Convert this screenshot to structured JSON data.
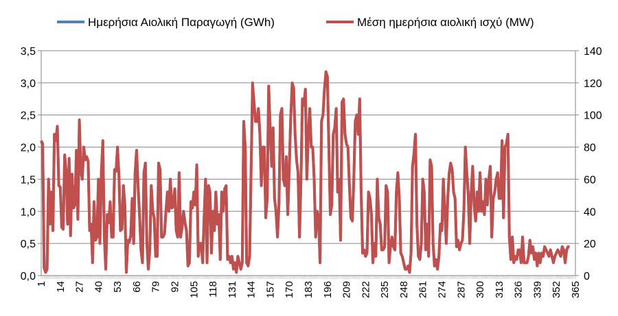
{
  "chart_data": {
    "type": "line",
    "title": "",
    "xlabel": "",
    "ylabel": "",
    "legend_position": "top",
    "grid": true,
    "x_tick_labels": [
      "1",
      "14",
      "27",
      "40",
      "53",
      "66",
      "79",
      "92",
      "105",
      "118",
      "131",
      "144",
      "157",
      "170",
      "183",
      "196",
      "209",
      "222",
      "235",
      "248",
      "261",
      "274",
      "287",
      "300",
      "313",
      "326",
      "339",
      "352",
      "365"
    ],
    "y_left": {
      "min": 0,
      "max": 3.5,
      "ticks": [
        "0,0",
        "0,5",
        "1,0",
        "1,5",
        "2,0",
        "2,5",
        "3,0",
        "3,5"
      ]
    },
    "y_right": {
      "min": 0,
      "max": 140,
      "ticks": [
        "0",
        "20",
        "40",
        "60",
        "80",
        "100",
        "120",
        "140"
      ]
    },
    "series": [
      {
        "name": "Ημερήσια Αιολική Παραγωγή (GWh)",
        "color": "#4f81bd",
        "axis": "left"
      },
      {
        "name": "Μέση ημερήσια αιολική ισχύ (MW)",
        "color": "#c0504d",
        "axis": "right"
      }
    ],
    "days": [
      1,
      365
    ],
    "anchors": {
      "day": [
        1,
        2,
        3,
        4,
        5,
        6,
        7,
        8,
        9,
        10,
        11,
        12,
        13,
        14,
        15,
        16,
        17,
        18,
        19,
        20,
        21,
        22,
        23,
        24,
        25,
        26,
        27,
        28,
        29,
        30,
        31,
        32,
        33,
        34,
        35,
        36,
        37,
        38,
        39,
        40,
        41,
        42,
        43,
        44,
        45,
        46,
        47,
        48,
        49,
        50,
        51,
        52,
        53,
        54,
        55,
        56,
        57,
        58,
        59,
        60,
        61,
        62,
        63,
        64,
        65,
        66,
        67,
        68,
        69,
        70,
        71,
        72,
        73,
        74,
        75,
        76,
        77,
        78,
        79,
        80,
        81,
        82,
        83,
        84,
        85,
        86,
        87,
        88,
        89,
        90,
        91,
        92,
        93,
        94,
        95,
        96,
        97,
        98,
        99,
        100,
        101,
        102,
        103,
        104,
        105,
        106,
        107,
        108,
        109,
        110,
        111,
        112,
        113,
        114,
        115,
        116,
        117,
        118,
        119,
        120,
        121,
        122,
        123,
        124,
        125,
        126,
        127,
        128,
        129,
        130,
        131,
        132,
        133,
        134,
        135,
        136,
        137,
        138,
        139,
        140,
        141,
        142,
        143,
        144,
        145,
        146,
        147,
        148,
        149,
        150,
        151,
        152,
        153,
        154,
        155,
        156,
        157,
        158,
        159,
        160,
        161,
        162,
        163,
        164,
        165,
        166,
        167,
        168,
        169,
        170,
        171,
        172,
        173,
        174,
        175,
        176,
        177,
        178,
        179,
        180,
        181,
        182,
        183,
        184,
        185,
        186,
        187,
        188,
        189,
        190,
        191,
        192,
        193,
        194,
        195,
        196,
        197,
        198,
        199,
        200,
        201,
        202,
        203,
        204,
        205,
        206,
        207,
        208,
        209,
        210,
        211,
        212,
        213,
        214,
        215,
        216,
        217,
        218,
        219,
        220,
        221,
        222,
        223,
        224,
        225,
        226,
        227,
        228,
        229,
        230,
        231,
        232,
        233,
        234,
        235,
        236,
        237,
        238,
        239,
        240,
        241,
        242,
        243,
        244,
        245,
        246,
        247,
        248,
        249,
        250,
        251,
        252,
        253,
        254,
        255,
        256,
        257,
        258,
        259,
        260,
        261,
        262,
        263,
        264,
        265,
        266,
        267,
        268,
        269,
        270,
        271,
        272,
        273,
        274,
        275,
        276,
        277,
        278,
        279,
        280,
        281,
        282,
        283,
        284,
        285,
        286,
        287,
        288,
        289,
        290,
        291,
        292,
        293,
        294,
        295,
        296,
        297,
        298,
        299,
        300,
        301,
        302,
        303,
        304,
        305,
        306,
        307,
        308,
        309,
        310,
        311,
        312,
        313,
        314,
        315,
        316,
        317,
        318,
        319,
        320,
        321,
        322,
        323,
        324,
        325,
        326,
        327,
        328,
        329,
        330,
        331,
        332,
        333,
        334,
        335,
        336,
        337,
        338,
        339,
        340,
        341,
        342,
        343,
        344,
        345,
        346,
        347,
        348,
        349,
        350,
        351,
        352,
        353,
        354,
        355,
        356,
        357,
        358,
        359,
        360,
        361,
        362,
        363,
        364,
        365
      ],
      "gwh": [
        2.08,
        2.05,
        0.12,
        0.05,
        0.1,
        1.5,
        0.8,
        1.3,
        0.7,
        2.2,
        2.1,
        2.32,
        1.4,
        1.38,
        0.75,
        0.72,
        1.88,
        1.6,
        0.8,
        1.82,
        0.62,
        1.58,
        1.05,
        1.1,
        1.95,
        0.88,
        2.4,
        1.62,
        1.5,
        2.0,
        1.8,
        1.85,
        1.78,
        0.7,
        0.8,
        0.2,
        1.15,
        0.55,
        0.6,
        1.5,
        0.5,
        1.6,
        2.1,
        0.6,
        0.1,
        0.95,
        0.82,
        1.15,
        0.6,
        0.6,
        1.65,
        1.62,
        2.0,
        1.55,
        0.7,
        0.72,
        1.4,
        1.1,
        0.05,
        0.55,
        0.52,
        0.62,
        1.2,
        0.5,
        1.6,
        1.95,
        1.4,
        0.95,
        0.4,
        0.2,
        1.6,
        1.75,
        0.5,
        0.1,
        0.4,
        1.4,
        1.0,
        0.9,
        0.3,
        0.3,
        1.75,
        1.65,
        0.6,
        0.6,
        0.65,
        1.0,
        1.3,
        1.0,
        1.5,
        1.05,
        1.08,
        1.35,
        0.7,
        0.6,
        1.6,
        0.6,
        0.75,
        1.0,
        0.82,
        0.7,
        0.15,
        0.2,
        1.15,
        1.05,
        1.3,
        1.1,
        1.72,
        0.3,
        0.5,
        0.5,
        0.2,
        0.9,
        1.5,
        0.2,
        1.4,
        1.3,
        0.35,
        1.0,
        0.7,
        1.3,
        0.8,
        0.95,
        0.25,
        1.3,
        1.0,
        1.35,
        1.4,
        0.25,
        0.3,
        0.2,
        0.3,
        0.1,
        0.2,
        0.05,
        0.3,
        0.2,
        0.1,
        0.2,
        2.4,
        2.0,
        0.2,
        0.15,
        0.3,
        1.6,
        2.9,
        2.7,
        2.4,
        2.4,
        2.6,
        2.2,
        1.4,
        2.0,
        2.0,
        0.9,
        1.2,
        2.95,
        2.3,
        1.7,
        2.3,
        1.2,
        1.0,
        0.6,
        1.1,
        2.5,
        2.6,
        1.5,
        1.4,
        1.85,
        0.95,
        1.65,
        2.45,
        2.95,
        2.92,
        2.2,
        1.8,
        1.6,
        0.6,
        1.5,
        2.75,
        2.65,
        2.9,
        1.5,
        2.2,
        2.6,
        2.0,
        2.0,
        1.5,
        0.6,
        1.0,
        0.9,
        0.2,
        2.4,
        2.5,
        2.9,
        3.15,
        3.1,
        2.0,
        0.95,
        1.1,
        2.2,
        2.3,
        2.6,
        1.3,
        1.5,
        0.55,
        2.7,
        2.75,
        2.2,
        2.05,
        2.0,
        1.4,
        0.9,
        0.85,
        1.5,
        2.4,
        2.5,
        2.2,
        2.75,
        1.3,
        0.35,
        0.4,
        0.3,
        0.35,
        1.3,
        1.2,
        0.95,
        0.2,
        0.5,
        0.3,
        1.5,
        0.9,
        0.8,
        0.4,
        0.4,
        0.45,
        1.4,
        1.3,
        0.2,
        0.45,
        0.6,
        0.45,
        0.4,
        1.3,
        1.6,
        1.2,
        0.35,
        0.3,
        0.2,
        0.1,
        0.1,
        0.15,
        0.05,
        0.35,
        1.7,
        1.9,
        2.2,
        0.8,
        0.3,
        0.25,
        0.5,
        1.5,
        1.3,
        0.4,
        0.8,
        0.3,
        1.8,
        1.7,
        0.5,
        0.15,
        0.25,
        0.1,
        0.3,
        0.8,
        0.7,
        1.5,
        1.0,
        0.5,
        1.2,
        1.6,
        1.75,
        1.65,
        1.3,
        1.2,
        0.45,
        0.55,
        0.4,
        0.5,
        0.55,
        1.0,
        2.0,
        1.6,
        1.25,
        0.5,
        1.3,
        1.7,
        1.1,
        0.85,
        1.3,
        1.0,
        1.6,
        1.0,
        1.15,
        0.95,
        1.5,
        1.1,
        1.5,
        1.7,
        0.6,
        1.2,
        1.3,
        1.5,
        1.6,
        1.2,
        1.2,
        2.1,
        0.9,
        2.0,
        2.05,
        2.2,
        0.6,
        0.25,
        0.6,
        0.2,
        0.3,
        0.25,
        0.4,
        0.4,
        0.2,
        0.6,
        0.2,
        0.2,
        0.2,
        0.3,
        0.55,
        0.35,
        0.45,
        0.25,
        0.35,
        0.15,
        0.35,
        0.2,
        0.35,
        0.3,
        0.45,
        0.4,
        0.35,
        0.3,
        0.4,
        0.3,
        0.2,
        0.3,
        0.35,
        0.4,
        0.35,
        0.3,
        0.45,
        0.4,
        0.2,
        0.4,
        0.45
      ],
      "mw": [
        84,
        82,
        5,
        2,
        4,
        60,
        33,
        52,
        28,
        88,
        84,
        93,
        56,
        55,
        30,
        29,
        75,
        64,
        32,
        73,
        25,
        63,
        42,
        44,
        78,
        35,
        97,
        65,
        60,
        80,
        72,
        74,
        71,
        28,
        32,
        8,
        46,
        22,
        24,
        60,
        20,
        64,
        84,
        24,
        4,
        38,
        33,
        46,
        24,
        24,
        66,
        65,
        80,
        62,
        28,
        29,
        56,
        44,
        2,
        22,
        21,
        25,
        48,
        20,
        64,
        78,
        56,
        38,
        16,
        8,
        64,
        70,
        20,
        4,
        16,
        56,
        40,
        36,
        12,
        12,
        70,
        66,
        24,
        24,
        26,
        40,
        52,
        40,
        60,
        42,
        43,
        54,
        28,
        24,
        64,
        24,
        30,
        40,
        33,
        28,
        6,
        8,
        46,
        42,
        52,
        44,
        69,
        12,
        20,
        20,
        8,
        36,
        60,
        8,
        56,
        52,
        14,
        40,
        28,
        52,
        32,
        38,
        10,
        52,
        40,
        54,
        56,
        10,
        12,
        8,
        12,
        4,
        8,
        2,
        12,
        8,
        4,
        8,
        96,
        80,
        8,
        6,
        12,
        64,
        120,
        108,
        96,
        96,
        104,
        88,
        56,
        80,
        80,
        36,
        48,
        118,
        92,
        68,
        92,
        48,
        40,
        24,
        44,
        100,
        104,
        60,
        56,
        74,
        38,
        66,
        98,
        120,
        117,
        88,
        72,
        64,
        24,
        60,
        110,
        106,
        116,
        60,
        88,
        104,
        80,
        80,
        60,
        24,
        40,
        36,
        8,
        96,
        100,
        116,
        127,
        124,
        80,
        38,
        44,
        88,
        92,
        104,
        52,
        60,
        22,
        108,
        110,
        88,
        82,
        80,
        56,
        36,
        34,
        60,
        96,
        100,
        88,
        110,
        52,
        14,
        16,
        12,
        14,
        52,
        48,
        38,
        8,
        20,
        12,
        60,
        36,
        32,
        16,
        16,
        18,
        56,
        52,
        8,
        18,
        24,
        18,
        16,
        52,
        64,
        48,
        14,
        12,
        8,
        4,
        4,
        6,
        2,
        14,
        68,
        76,
        88,
        32,
        12,
        10,
        20,
        60,
        52,
        16,
        32,
        12,
        72,
        68,
        20,
        6,
        10,
        4,
        12,
        32,
        28,
        60,
        40,
        20,
        48,
        64,
        70,
        66,
        52,
        48,
        18,
        22,
        16,
        20,
        22,
        40,
        80,
        64,
        50,
        20,
        52,
        68,
        44,
        34,
        52,
        40,
        64,
        40,
        46,
        38,
        60,
        44,
        60,
        68,
        24,
        48,
        52,
        60,
        64,
        48,
        48,
        84,
        36,
        80,
        82,
        88,
        24,
        10,
        24,
        8,
        12,
        10,
        16,
        16,
        8,
        24,
        8,
        8,
        8,
        12,
        22,
        14,
        18,
        10,
        14,
        6,
        14,
        8,
        14,
        12,
        18,
        16,
        14,
        12,
        16,
        12,
        8,
        12,
        14,
        16,
        14,
        12,
        18,
        16,
        8,
        16,
        18
      ]
    }
  }
}
